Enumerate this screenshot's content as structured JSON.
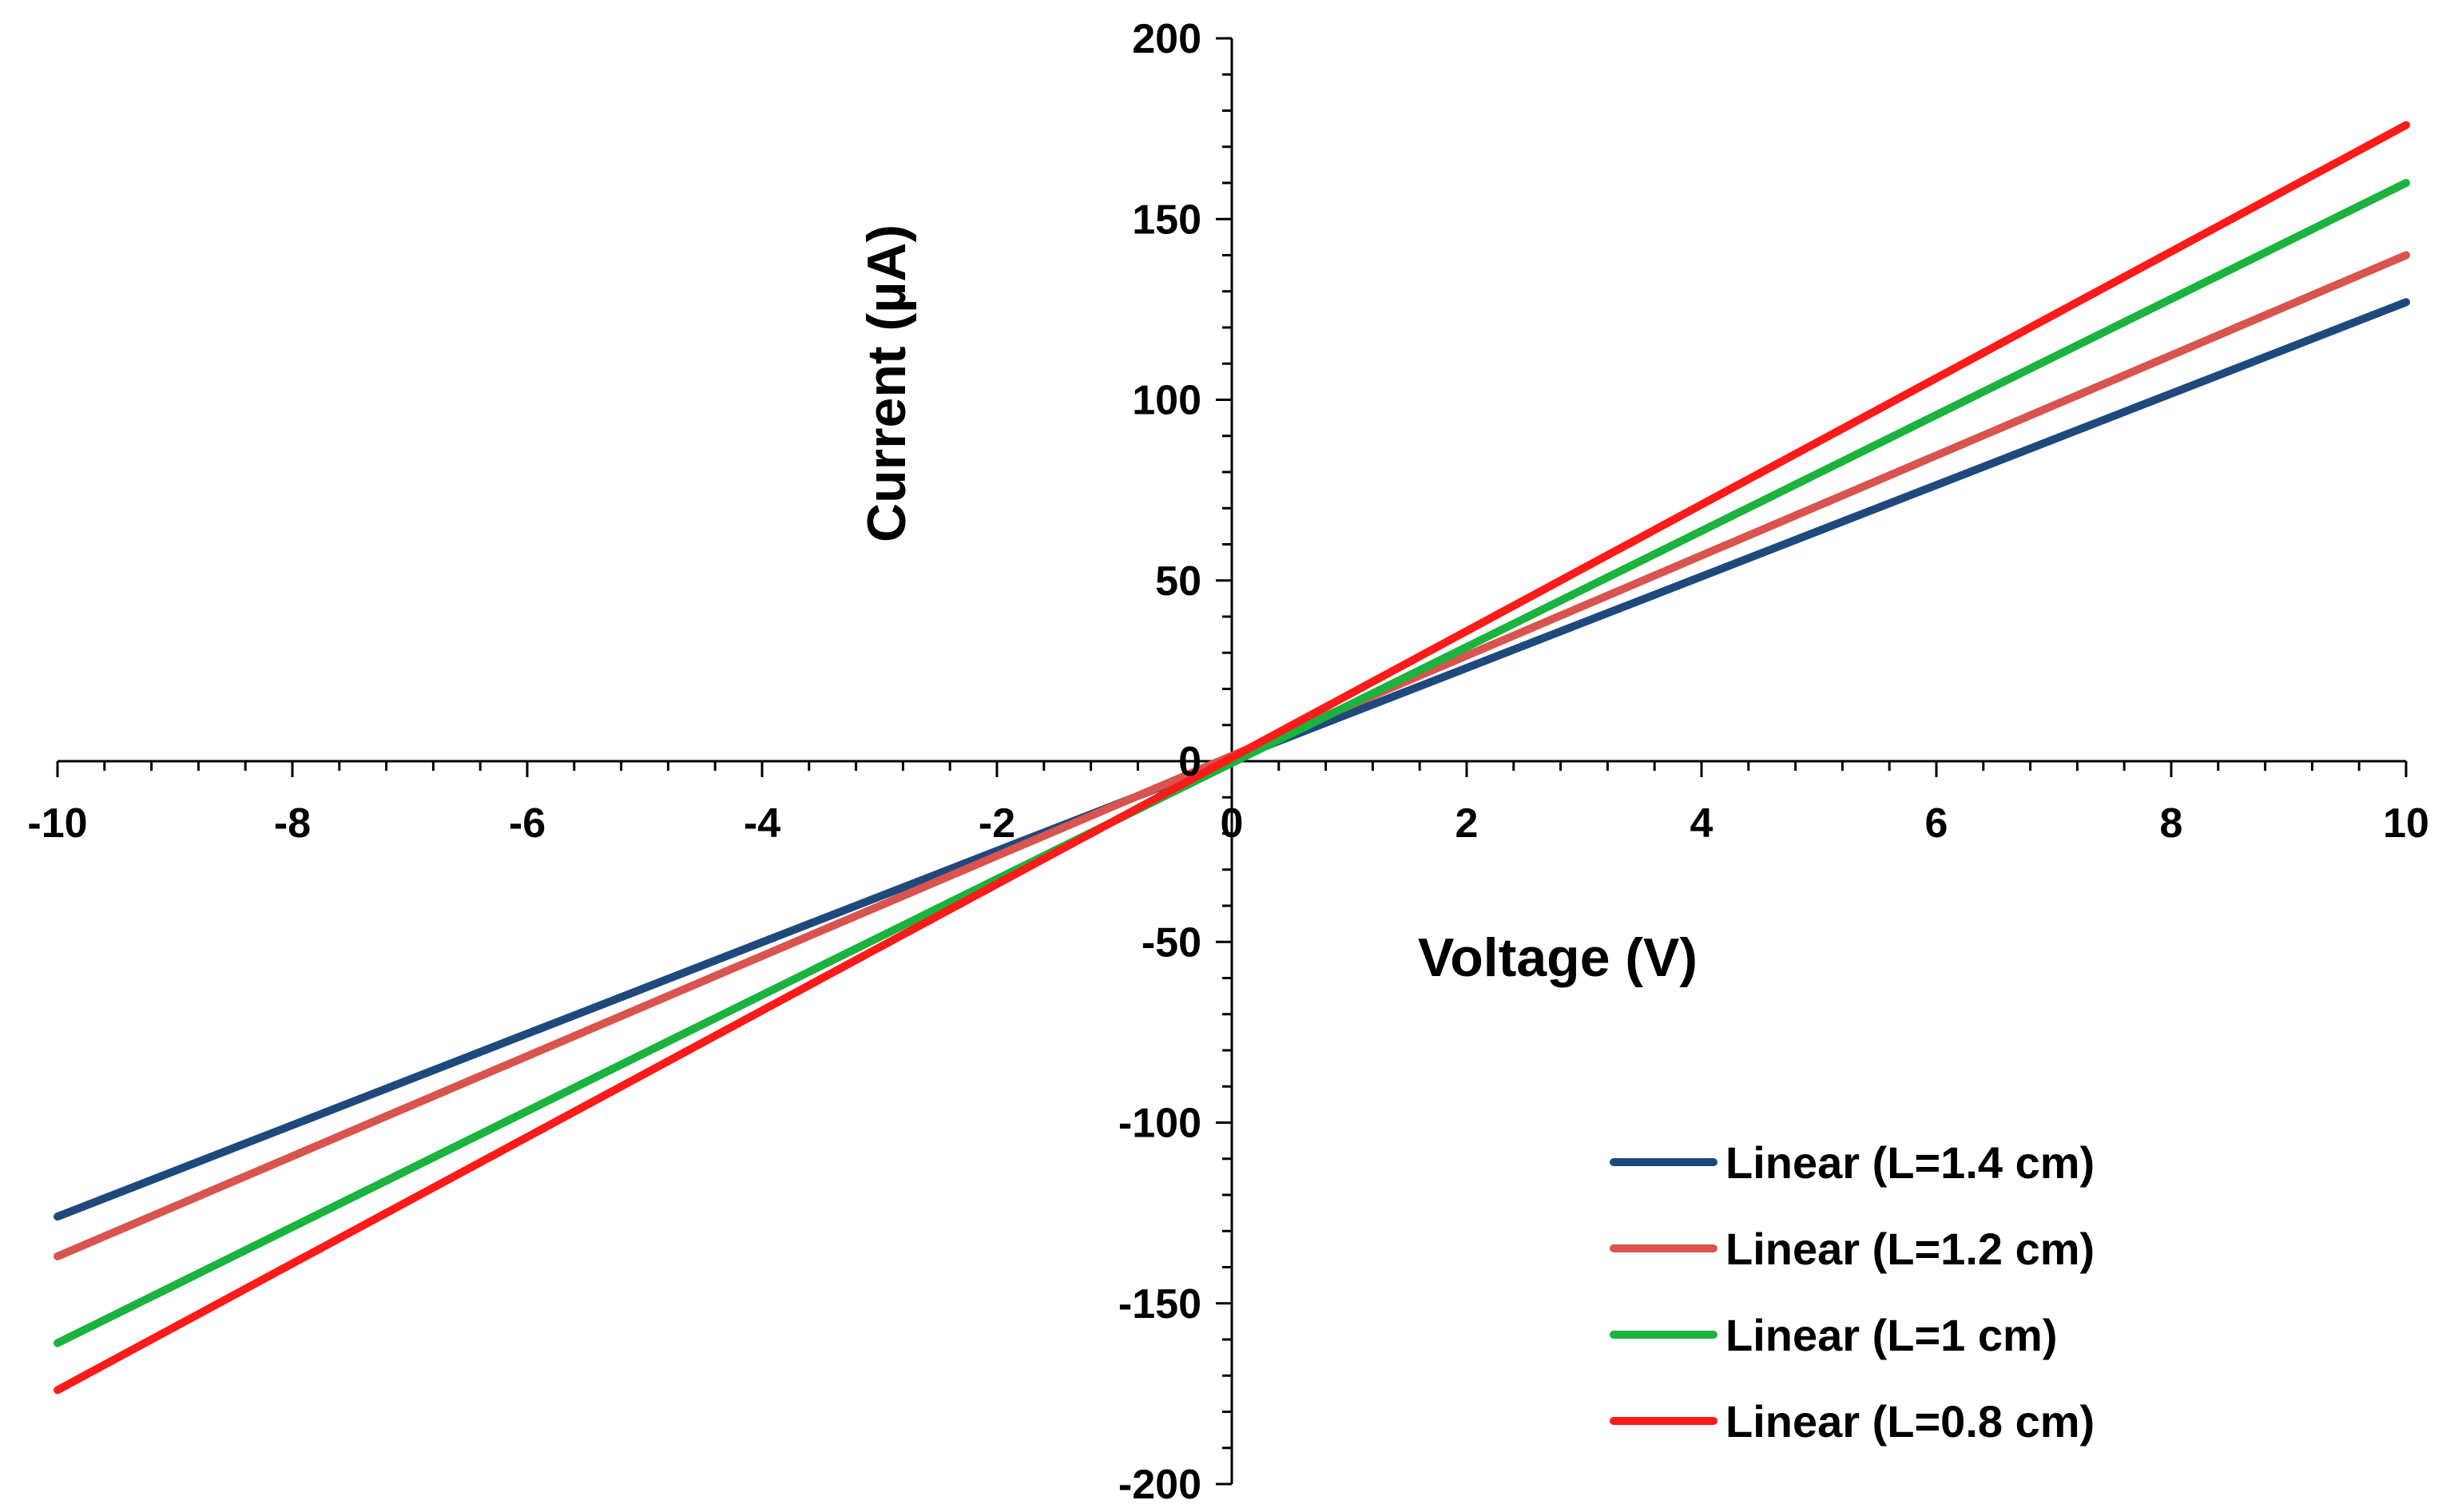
{
  "chart_data": {
    "type": "line",
    "xlabel": "Voltage (V)",
    "ylabel": "Current (µA)",
    "xlim": [
      -10,
      10
    ],
    "ylim": [
      -200,
      200
    ],
    "x_ticks": [
      -10,
      -8,
      -6,
      -4,
      -2,
      0,
      2,
      4,
      6,
      8,
      10
    ],
    "y_ticks": [
      -200,
      -150,
      -100,
      -50,
      0,
      50,
      100,
      150,
      200
    ],
    "x_tick_labels": [
      "-10",
      "-8",
      "-6",
      "-4",
      "-2",
      "0",
      "2",
      "4",
      "6",
      "8",
      "10"
    ],
    "y_tick_labels": [
      "-200",
      "-150",
      "-100",
      "-50",
      "0",
      "50",
      "100",
      "150",
      "200"
    ],
    "legend_position": "bottom-right",
    "series": [
      {
        "name": "Linear (L=1.4 cm)",
        "color": "#1f497d",
        "x": [
          -10,
          10
        ],
        "y": [
          -126,
          127
        ]
      },
      {
        "name": "Linear (L=1.2 cm)",
        "color": "#d9534f",
        "x": [
          -10,
          10
        ],
        "y": [
          -137,
          140
        ]
      },
      {
        "name": "Linear (L=1 cm)",
        "color": "#19b33d",
        "x": [
          -10,
          10
        ],
        "y": [
          -161,
          160
        ]
      },
      {
        "name": "Linear (L=0.8 cm)",
        "color": "#ff1a1a",
        "x": [
          -10,
          10
        ],
        "y": [
          -174,
          176
        ]
      }
    ]
  }
}
